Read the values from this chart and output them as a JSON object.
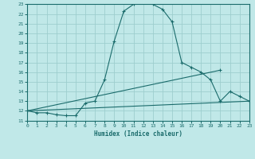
{
  "title": "",
  "xlabel": "Humidex (Indice chaleur)",
  "xlim": [
    0,
    23
  ],
  "ylim": [
    11,
    23
  ],
  "bg_color": "#c0e8e8",
  "grid_color": "#9ecece",
  "line_color": "#1a6b6b",
  "xticks": [
    0,
    1,
    2,
    3,
    4,
    5,
    6,
    7,
    8,
    9,
    10,
    11,
    12,
    13,
    14,
    15,
    16,
    17,
    18,
    19,
    20,
    21,
    22,
    23
  ],
  "yticks": [
    11,
    12,
    13,
    14,
    15,
    16,
    17,
    18,
    19,
    20,
    21,
    22,
    23
  ],
  "line1_x": [
    0,
    1,
    2,
    3,
    4,
    5,
    6,
    7,
    8,
    9,
    10,
    11,
    12,
    13,
    14,
    15,
    16,
    17,
    18,
    19,
    20,
    21,
    22,
    23
  ],
  "line1_y": [
    12.0,
    11.8,
    11.8,
    11.6,
    11.5,
    11.5,
    12.8,
    13.0,
    15.2,
    19.2,
    22.3,
    23.0,
    23.2,
    23.0,
    22.5,
    21.2,
    17.0,
    16.5,
    16.0,
    15.2,
    13.0,
    14.0,
    13.5,
    13.0
  ],
  "line2_x": [
    0,
    20
  ],
  "line2_y": [
    12.0,
    16.2
  ],
  "line3_x": [
    0,
    23
  ],
  "line3_y": [
    12.0,
    13.0
  ]
}
